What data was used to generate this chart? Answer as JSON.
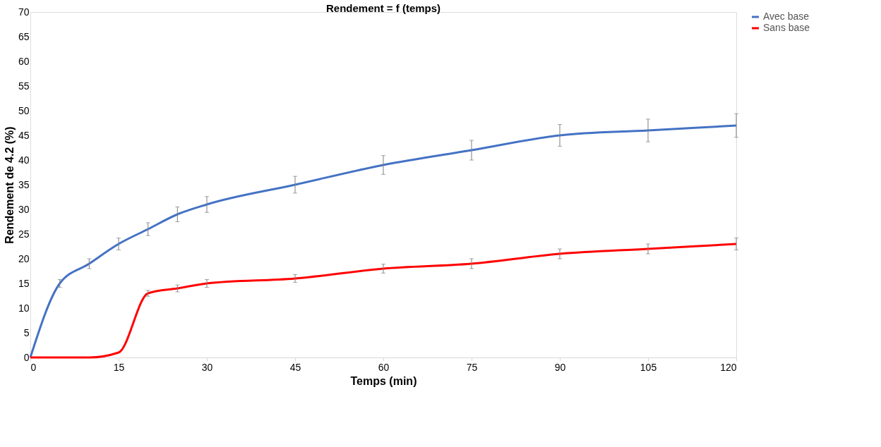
{
  "chart_data": {
    "type": "line",
    "title": "Rendement = f (temps)",
    "xlabel": "Temps (min)",
    "ylabel": "Rendement de 4.2 (%)",
    "x": [
      0,
      5,
      10,
      15,
      20,
      25,
      30,
      45,
      60,
      75,
      90,
      105,
      120
    ],
    "series": [
      {
        "name": "Avec base",
        "color": "#4472c4",
        "values": [
          0,
          15,
          19,
          23,
          26,
          29,
          31,
          35,
          39,
          42,
          45,
          46,
          47
        ],
        "errors": [
          null,
          0.8,
          1,
          1.2,
          1.3,
          1.5,
          1.6,
          1.7,
          1.9,
          2,
          2.2,
          2.3,
          2.4
        ]
      },
      {
        "name": "Sans base",
        "color": "#ff0000",
        "values": [
          0,
          0,
          0,
          1,
          13,
          14,
          15,
          16,
          18,
          19,
          21,
          22,
          23
        ],
        "errors": [
          null,
          null,
          null,
          null,
          0.6,
          0.7,
          0.8,
          0.8,
          0.9,
          1,
          1,
          1,
          1.2
        ]
      }
    ],
    "xlim": [
      0,
      120
    ],
    "xticks": [
      0,
      15,
      30,
      45,
      60,
      75,
      90,
      105,
      120
    ],
    "ylim": [
      0,
      70
    ],
    "yticks": [
      0,
      5,
      10,
      15,
      20,
      25,
      30,
      35,
      40,
      45,
      50,
      55,
      60,
      65,
      70
    ],
    "grid": false,
    "legend": "top right",
    "marker": "none",
    "line_style": "solid"
  }
}
